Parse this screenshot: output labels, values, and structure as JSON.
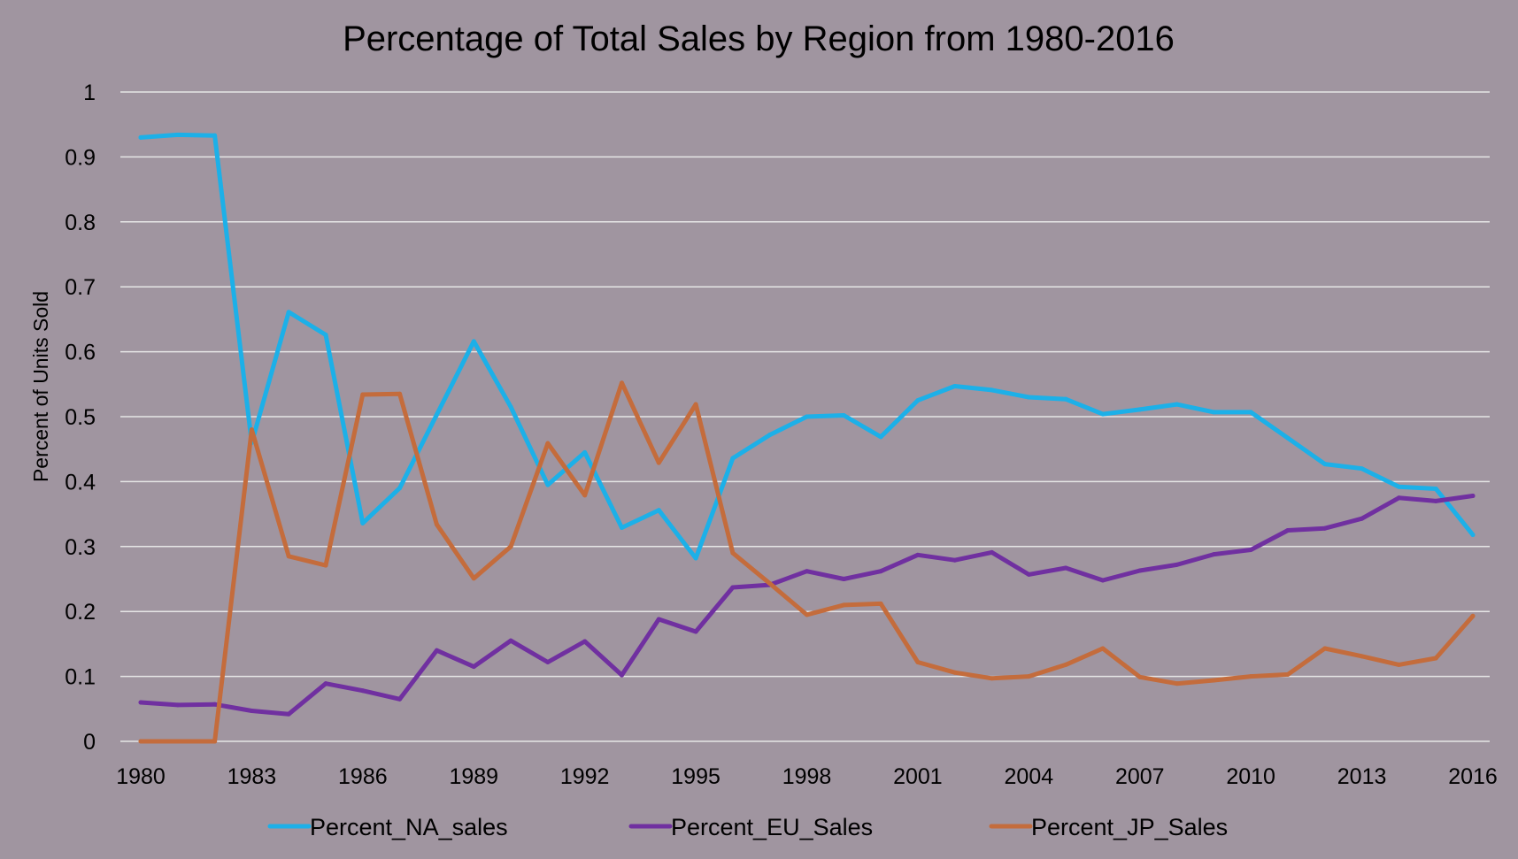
{
  "chart_data": {
    "type": "line",
    "title": "Percentage of Total Sales by Region from 1980-2016",
    "xlabel": "",
    "ylabel": "Percent of Units Sold",
    "ylim": [
      0,
      1
    ],
    "yticks": [
      "0",
      "0.1",
      "0.2",
      "0.3",
      "0.4",
      "0.5",
      "0.6",
      "0.7",
      "0.8",
      "0.9",
      "1"
    ],
    "xtick_labels": [
      "1980",
      "1983",
      "1986",
      "1989",
      "1992",
      "1995",
      "1998",
      "2001",
      "2004",
      "2007",
      "2010",
      "2013",
      "2016"
    ],
    "x": [
      1980,
      1981,
      1982,
      1983,
      1984,
      1985,
      1986,
      1987,
      1988,
      1989,
      1990,
      1991,
      1992,
      1993,
      1994,
      1995,
      1996,
      1997,
      1998,
      1999,
      2000,
      2001,
      2002,
      2003,
      2004,
      2005,
      2006,
      2007,
      2008,
      2009,
      2010,
      2011,
      2012,
      2013,
      2014,
      2015,
      2016
    ],
    "grid": true,
    "legend_position": "bottom",
    "series": [
      {
        "name": "Percent_NA_sales",
        "color": "#1cb0e8",
        "values": [
          0.93,
          0.934,
          0.933,
          0.46,
          0.661,
          0.626,
          0.336,
          0.39,
          0.503,
          0.616,
          0.515,
          0.395,
          0.445,
          0.329,
          0.356,
          0.282,
          0.436,
          0.472,
          0.5,
          0.502,
          0.469,
          0.525,
          0.547,
          0.541,
          0.53,
          0.527,
          0.504,
          0.511,
          0.519,
          0.507,
          0.507,
          0.467,
          0.427,
          0.42,
          0.392,
          0.389,
          0.318
        ]
      },
      {
        "name": "Percent_EU_Sales",
        "color": "#7030a0",
        "values": [
          0.06,
          0.056,
          0.057,
          0.047,
          0.042,
          0.089,
          0.078,
          0.065,
          0.14,
          0.115,
          0.155,
          0.122,
          0.154,
          0.102,
          0.188,
          0.169,
          0.237,
          0.241,
          0.262,
          0.25,
          0.262,
          0.287,
          0.279,
          0.291,
          0.257,
          0.267,
          0.248,
          0.263,
          0.272,
          0.288,
          0.295,
          0.325,
          0.328,
          0.343,
          0.375,
          0.37,
          0.378
        ]
      },
      {
        "name": "Percent_JP_Sales",
        "color": "#c46c3c",
        "values": [
          0,
          0,
          0,
          0.48,
          0.285,
          0.271,
          0.534,
          0.535,
          0.334,
          0.251,
          0.3,
          0.459,
          0.379,
          0.552,
          0.429,
          0.519,
          0.29,
          0.243,
          0.195,
          0.21,
          0.212,
          0.122,
          0.106,
          0.097,
          0.1,
          0.118,
          0.143,
          0.099,
          0.089,
          0.094,
          0.1,
          0.103,
          0.143,
          0.131,
          0.118,
          0.128,
          0.193
        ]
      }
    ]
  }
}
